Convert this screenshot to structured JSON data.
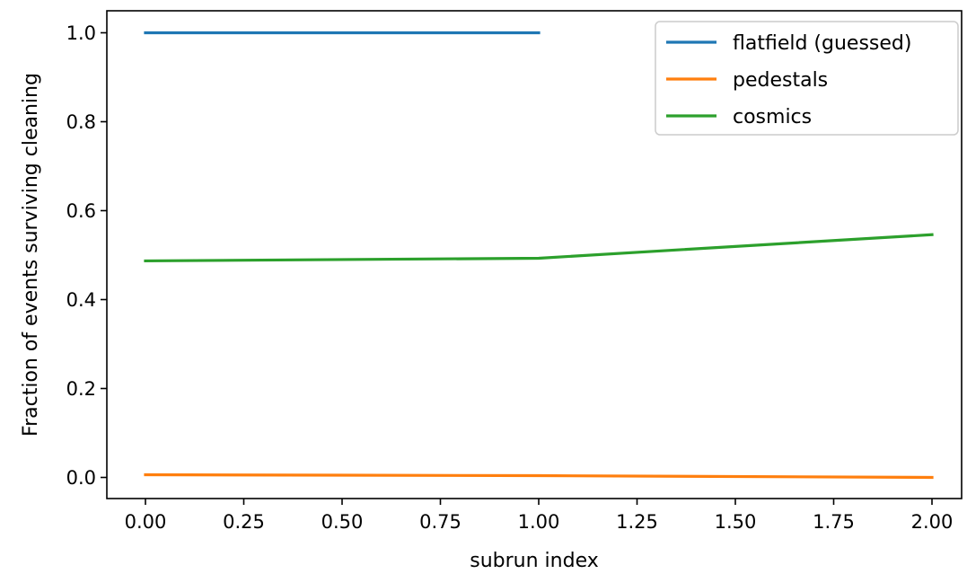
{
  "chart_data": {
    "type": "line",
    "xlabel": "subrun index",
    "ylabel": "Fraction of events surviving cleaning",
    "xlim": [
      -0.1,
      2.07
    ],
    "ylim": [
      -0.05,
      1.05
    ],
    "x_ticks": [
      0.0,
      0.25,
      0.5,
      0.75,
      1.0,
      1.25,
      1.5,
      1.75,
      2.0
    ],
    "x_tick_labels": [
      "0.00",
      "0.25",
      "0.50",
      "0.75",
      "1.00",
      "1.25",
      "1.50",
      "1.75",
      "2.00"
    ],
    "y_ticks": [
      0.0,
      0.2,
      0.4,
      0.6,
      0.8,
      1.0
    ],
    "y_tick_labels": [
      "0.0",
      "0.2",
      "0.4",
      "0.6",
      "0.8",
      "1.0"
    ],
    "grid": false,
    "legend_position": "top-right",
    "series": [
      {
        "name": "flatfield (guessed)",
        "color": "#1f77b4",
        "x": [
          0,
          1
        ],
        "y": [
          1.0,
          1.0
        ]
      },
      {
        "name": "pedestals",
        "color": "#ff7f0e",
        "x": [
          0,
          1,
          2
        ],
        "y": [
          0.006,
          0.004,
          0.0
        ]
      },
      {
        "name": "cosmics",
        "color": "#2ca02c",
        "x": [
          0,
          1,
          2
        ],
        "y": [
          0.487,
          0.493,
          0.546
        ]
      }
    ]
  }
}
